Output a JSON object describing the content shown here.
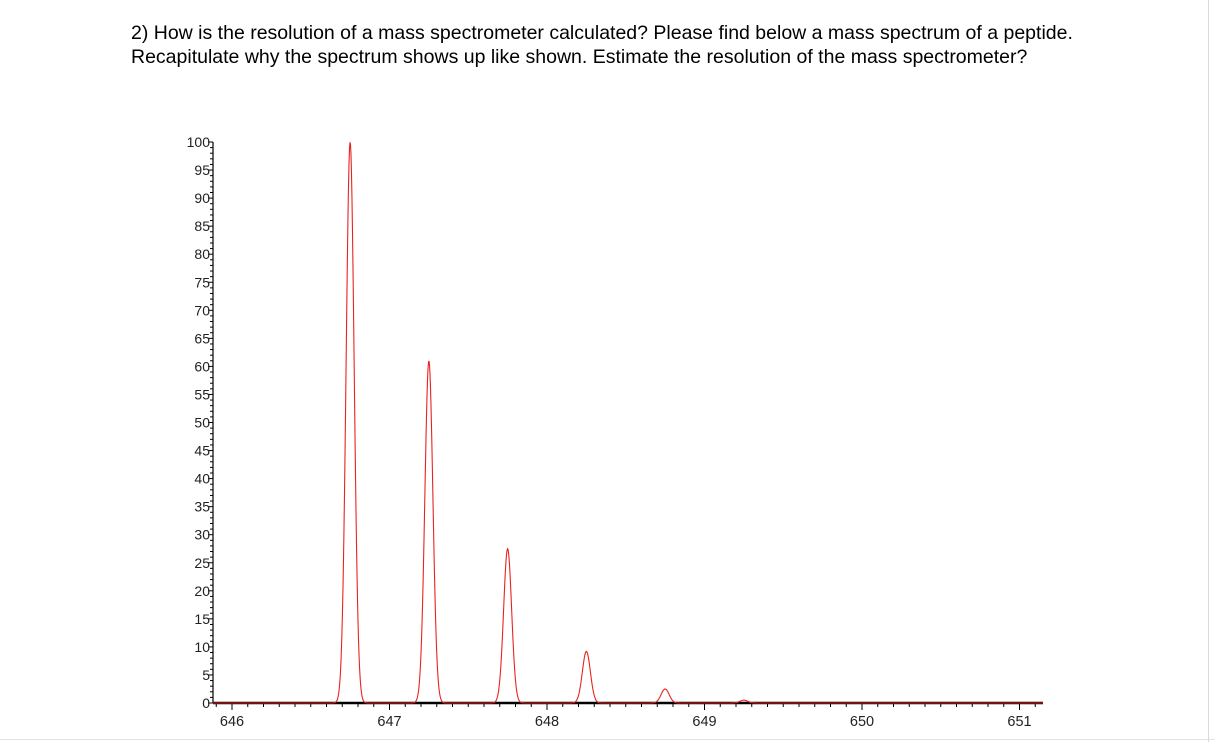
{
  "question": {
    "text": "2) How is the resolution of a mass spectrometer calculated? Please find below a mass spectrum of a peptide. Recapitulate why the spectrum shows up like shown. Estimate the resolution of the mass spectrometer?"
  },
  "chart_data": {
    "type": "line",
    "title": "",
    "xlabel": "",
    "ylabel": "",
    "xlim": [
      645.9,
      651.15
    ],
    "ylim": [
      0,
      100
    ],
    "x_ticks": [
      "646",
      "647",
      "648",
      "649",
      "650",
      "651"
    ],
    "y_ticks": [
      "0",
      "5",
      "10",
      "15",
      "20",
      "25",
      "30",
      "35",
      "40",
      "45",
      "50",
      "55",
      "60",
      "65",
      "70",
      "75",
      "80",
      "85",
      "90",
      "95",
      "100"
    ],
    "series": [
      {
        "color": "#e8231f",
        "peaks": [
          {
            "mz": 646.75,
            "intensity": 100
          },
          {
            "mz": 647.25,
            "intensity": 61
          },
          {
            "mz": 647.75,
            "intensity": 27.5
          },
          {
            "mz": 648.25,
            "intensity": 9.2
          },
          {
            "mz": 648.75,
            "intensity": 2.5
          },
          {
            "mz": 649.25,
            "intensity": 0.5
          }
        ],
        "peak_width_fwhm": 0.06
      }
    ],
    "baseline_color": "#000000",
    "grid": false
  }
}
